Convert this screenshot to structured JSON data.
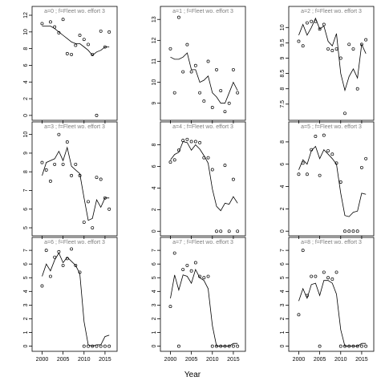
{
  "x_axis_title": "Year",
  "chart_data": {
    "type": "scatter",
    "layout": "3x3 small multiples, points = observed, line = fitted",
    "xlabel": "Year",
    "xlim": [
      1998,
      2017.5
    ],
    "x_ticks": [
      2000,
      2005,
      2010,
      2015
    ],
    "panels": [
      {
        "label": "a=0 ; f=Fleet wo. effort 3",
        "ylim": [
          -0.3,
          12
        ],
        "y_ticks": [
          0,
          2,
          4,
          6,
          8,
          10,
          12
        ],
        "observed_x": [
          2000,
          2002,
          2003,
          2004,
          2005,
          2006,
          2007,
          2008,
          2009,
          2010,
          2011,
          2012,
          2013,
          2014,
          2015,
          2016
        ],
        "observed_y": [
          11.0,
          11.2,
          10.6,
          9.9,
          11.5,
          7.4,
          7.3,
          8.4,
          9.6,
          9.1,
          8.5,
          7.3,
          0.0,
          10.1,
          8.2,
          10.0
        ],
        "fitted_x": [
          2000,
          2001,
          2002,
          2003,
          2004,
          2005,
          2006,
          2007,
          2008,
          2009,
          2010,
          2011,
          2012,
          2013,
          2014,
          2015,
          2016
        ],
        "fitted_y": [
          10.7,
          10.7,
          10.7,
          10.4,
          10.0,
          9.6,
          9.2,
          8.8,
          8.6,
          8.6,
          8.2,
          7.8,
          7.2,
          7.6,
          7.8,
          8.2,
          8.2
        ]
      },
      {
        "label": "a=3 ; f=Fleet wo. effort 3",
        "ylim": [
          4.7,
          10.2
        ],
        "y_ticks": [
          5,
          6,
          7,
          8,
          9,
          10
        ],
        "observed_x": [
          2000,
          2001,
          2002,
          2003,
          2004,
          2005,
          2006,
          2007,
          2008,
          2009,
          2010,
          2011,
          2012,
          2013,
          2014,
          2015,
          2016
        ],
        "observed_y": [
          8.5,
          8.1,
          7.5,
          8.4,
          10.0,
          8.4,
          9.6,
          7.8,
          8.4,
          7.8,
          5.3,
          6.4,
          5.0,
          7.7,
          7.6,
          6.6,
          6.0
        ],
        "fitted_x": [
          2000,
          2001,
          2002,
          2003,
          2004,
          2005,
          2006,
          2007,
          2008,
          2009,
          2010,
          2011,
          2012,
          2013,
          2014,
          2015,
          2016
        ],
        "fitted_y": [
          7.8,
          8.5,
          8.6,
          8.7,
          9.1,
          8.6,
          9.3,
          8.3,
          8.1,
          7.9,
          6.6,
          5.4,
          5.5,
          6.5,
          6.1,
          6.6,
          6.6
        ]
      },
      {
        "label": "a=6 ; f=Fleet wo. effort 3",
        "ylim": [
          -0.2,
          7.3
        ],
        "y_ticks": [
          0,
          1,
          2,
          3,
          4,
          5,
          6,
          7
        ],
        "observed_x": [
          2000,
          2001,
          2002,
          2003,
          2004,
          2005,
          2006,
          2007,
          2008,
          2009,
          2010,
          2011,
          2012,
          2013,
          2014,
          2015,
          2016
        ],
        "observed_y": [
          4.4,
          7.0,
          5.1,
          6.5,
          6.9,
          5.9,
          6.4,
          7.1,
          5.9,
          5.4,
          0.0,
          0.0,
          0.0,
          0.0,
          0.0,
          0.0,
          0.0
        ],
        "fitted_x": [
          2000,
          2001,
          2002,
          2003,
          2004,
          2005,
          2006,
          2007,
          2008,
          2009,
          2010,
          2011,
          2012,
          2013,
          2014,
          2015,
          2016
        ],
        "fitted_y": [
          5.1,
          6.0,
          5.5,
          6.3,
          6.8,
          6.1,
          6.5,
          6.2,
          5.9,
          5.3,
          1.8,
          0.1,
          0.0,
          0.1,
          0.1,
          0.7,
          0.8
        ]
      },
      {
        "label": "a=1 ; f=Fleet wo. effort 3",
        "ylim": [
          8.3,
          13.2
        ],
        "y_ticks": [
          9,
          10,
          11,
          12,
          13
        ],
        "observed_x": [
          2000,
          2001,
          2002,
          2003,
          2004,
          2005,
          2006,
          2007,
          2008,
          2009,
          2010,
          2011,
          2012,
          2013,
          2014,
          2015,
          2016
        ],
        "observed_y": [
          11.6,
          9.5,
          13.1,
          10.5,
          11.8,
          10.5,
          10.8,
          9.5,
          9.1,
          11.0,
          8.8,
          10.6,
          9.6,
          8.6,
          9.0,
          10.6,
          9.5
        ],
        "fitted_x": [
          2000,
          2001,
          2002,
          2003,
          2004,
          2005,
          2006,
          2007,
          2008,
          2009,
          2010,
          2011,
          2012,
          2013,
          2014,
          2015,
          2016
        ],
        "fitted_y": [
          11.2,
          11.1,
          11.1,
          11.2,
          11.4,
          10.6,
          10.6,
          10.0,
          10.1,
          10.3,
          9.5,
          9.3,
          9.0,
          9.0,
          9.5,
          10.0,
          9.6
        ]
      },
      {
        "label": "a=4 ; f=Fleet wo. effort 3",
        "ylim": [
          -0.2,
          9.3
        ],
        "y_ticks": [
          0,
          2,
          4,
          6,
          8
        ],
        "observed_x": [
          2000,
          2001,
          2002,
          2003,
          2004,
          2005,
          2006,
          2007,
          2008,
          2009,
          2010,
          2011,
          2012,
          2013,
          2014,
          2015,
          2016
        ],
        "observed_y": [
          6.4,
          6.6,
          7.5,
          8.4,
          8.5,
          8.3,
          8.3,
          8.2,
          6.8,
          6.8,
          5.7,
          0.0,
          0.0,
          6.1,
          0.0,
          4.8,
          0.0
        ],
        "fitted_x": [
          2000,
          2001,
          2002,
          2003,
          2004,
          2005,
          2006,
          2007,
          2008,
          2009,
          2010,
          2011,
          2012,
          2013,
          2014,
          2015,
          2016
        ],
        "fitted_y": [
          6.6,
          7.1,
          7.3,
          8.3,
          8.2,
          7.5,
          8.0,
          7.6,
          7.0,
          6.3,
          3.9,
          2.3,
          1.9,
          2.6,
          2.5,
          3.2,
          2.6
        ]
      },
      {
        "label": "a=7 ; f=Fleet wo. effort 3",
        "ylim": [
          -0.2,
          7.3
        ],
        "y_ticks": [
          0,
          1,
          2,
          3,
          4,
          5,
          6,
          7
        ],
        "observed_x": [
          2000,
          2001,
          2002,
          2003,
          2004,
          2005,
          2006,
          2007,
          2008,
          2009,
          2010,
          2011,
          2012,
          2013,
          2014,
          2015,
          2016
        ],
        "observed_y": [
          2.9,
          6.8,
          0.0,
          5.6,
          5.9,
          5.5,
          6.1,
          5.1,
          5.0,
          5.1,
          0.0,
          0.0,
          0.0,
          0.0,
          0.0,
          0.0,
          0.0
        ],
        "fitted_x": [
          2000,
          2001,
          2002,
          2003,
          2004,
          2005,
          2006,
          2007,
          2008,
          2009,
          2010,
          2011,
          2012,
          2013,
          2014,
          2015,
          2016
        ],
        "fitted_y": [
          3.5,
          5.2,
          4.1,
          5.2,
          5.1,
          4.6,
          5.6,
          5.0,
          4.8,
          4.2,
          1.5,
          0.0,
          0.0,
          0.0,
          0.0,
          0.2,
          0.2
        ]
      },
      {
        "label": "a=2 ; f=Fleet wo. effort 3",
        "ylim": [
          7.05,
          10.4
        ],
        "y_ticks": [
          7.5,
          8.0,
          8.5,
          9.0,
          9.5,
          10.0
        ],
        "observed_x": [
          2000,
          2001,
          2002,
          2003,
          2004,
          2005,
          2006,
          2007,
          2008,
          2009,
          2010,
          2011,
          2012,
          2013,
          2014,
          2015,
          2016
        ],
        "observed_y": [
          9.55,
          9.4,
          10.15,
          10.2,
          10.2,
          9.95,
          10.1,
          9.3,
          9.25,
          9.3,
          9.0,
          7.2,
          9.45,
          9.3,
          8.0,
          9.45,
          9.6
        ],
        "fitted_x": [
          2000,
          2001,
          2002,
          2003,
          2004,
          2005,
          2006,
          2007,
          2008,
          2009,
          2010,
          2011,
          2012,
          2013,
          2014,
          2015,
          2016
        ],
        "fitted_y": [
          9.75,
          10.1,
          9.75,
          10.0,
          10.3,
          9.95,
          10.05,
          9.55,
          9.4,
          9.8,
          8.5,
          7.95,
          8.4,
          8.65,
          8.35,
          9.45,
          9.15
        ]
      },
      {
        "label": "a=5 ; f=Fleet wo. effort 3",
        "ylim": [
          -0.2,
          9.0
        ],
        "y_ticks": [
          0,
          2,
          4,
          6,
          8
        ],
        "observed_x": [
          2000,
          2001,
          2002,
          2003,
          2004,
          2005,
          2006,
          2007,
          2008,
          2009,
          2010,
          2011,
          2012,
          2013,
          2014,
          2015,
          2016
        ],
        "observed_y": [
          5.1,
          6.1,
          5.1,
          7.3,
          8.5,
          5.0,
          8.6,
          7.2,
          6.9,
          6.1,
          4.4,
          0.0,
          0.0,
          0.0,
          0.0,
          5.7,
          6.5
        ],
        "fitted_x": [
          2000,
          2001,
          2002,
          2003,
          2004,
          2005,
          2006,
          2007,
          2008,
          2009,
          2010,
          2011,
          2012,
          2013,
          2014,
          2015,
          2016
        ],
        "fitted_y": [
          5.5,
          6.4,
          6.0,
          7.2,
          7.6,
          6.5,
          7.3,
          6.9,
          6.5,
          6.0,
          3.4,
          1.4,
          1.3,
          1.7,
          1.8,
          3.4,
          3.3
        ]
      },
      {
        "label": "a=8 ; f=Fleet wo. effort 3",
        "ylim": [
          -0.2,
          7.3
        ],
        "y_ticks": [
          0,
          1,
          2,
          3,
          4,
          5,
          6,
          7
        ],
        "observed_x": [
          2000,
          2001,
          2002,
          2003,
          2004,
          2005,
          2006,
          2007,
          2008,
          2009,
          2010,
          2011,
          2012,
          2013,
          2014,
          2015,
          2016
        ],
        "observed_y": [
          2.3,
          7.0,
          3.7,
          5.1,
          5.1,
          0.0,
          5.4,
          5.0,
          4.9,
          5.4,
          0.0,
          0.0,
          0.0,
          0.0,
          0.0,
          0.0,
          0.0
        ],
        "fitted_x": [
          2000,
          2001,
          2002,
          2003,
          2004,
          2005,
          2006,
          2007,
          2008,
          2009,
          2010,
          2011,
          2012,
          2013,
          2014,
          2015,
          2016
        ],
        "fitted_y": [
          3.3,
          4.2,
          3.5,
          4.5,
          4.6,
          3.7,
          4.8,
          4.8,
          4.6,
          3.8,
          1.2,
          0.0,
          0.0,
          0.0,
          0.0,
          0.2,
          0.2
        ]
      }
    ]
  }
}
